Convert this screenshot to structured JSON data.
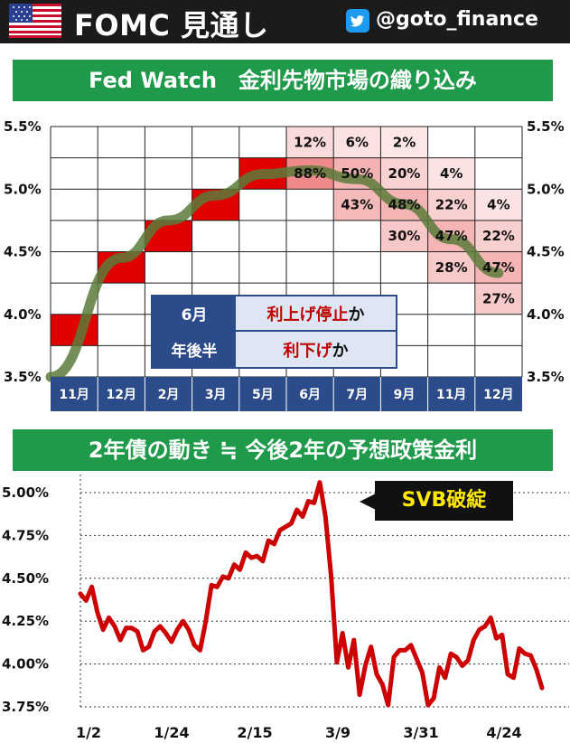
{
  "header": {
    "title": "FOMC 見通し",
    "handle": "@goto_finance",
    "flag_icon": "us-flag-icon",
    "social_icon": "twitter-icon"
  },
  "fedwatch": {
    "title": "Fed Watch　金利先物市場の織り込み",
    "legend": {
      "row1_key": "6月",
      "row1_red": "利上げ停止",
      "row1_tail": "か",
      "row2_key": "年後半",
      "row2_red": "利下げ",
      "row2_tail": "か"
    }
  },
  "bond": {
    "title": "2年債の動き ≒ 今後2年の予想政策金利",
    "annotation": "SVB破綻"
  },
  "colors": {
    "header_bg": "#1b1b1b",
    "banner": "#1e9a4a",
    "hike_red": "#e00000",
    "trend_line": "#5a7a3a",
    "bond_line": "#cc0000",
    "month_bar": "#2c4b8a"
  },
  "chart_data": [
    {
      "type": "heatmap",
      "ylim": [
        3.5,
        5.5
      ],
      "y_ticks": [
        "5.5%",
        "5.0%",
        "4.5%",
        "4.0%",
        "3.5%"
      ],
      "columns": [
        "11月",
        "12月",
        "2月",
        "3月",
        "5月",
        "6月",
        "7月",
        "9月",
        "11月",
        "12月"
      ],
      "realized_hikes": [
        {
          "col": 0,
          "rate_band": [
            3.75,
            4.0
          ]
        },
        {
          "col": 1,
          "rate_band": [
            4.25,
            4.5
          ]
        },
        {
          "col": 2,
          "rate_band": [
            4.5,
            4.75
          ]
        },
        {
          "col": 3,
          "rate_band": [
            4.75,
            5.0
          ]
        },
        {
          "col": 4,
          "rate_band": [
            5.0,
            5.25
          ]
        }
      ],
      "probabilities": [
        {
          "col": 5,
          "rate_band": [
            5.25,
            5.5
          ],
          "prob": 12,
          "label": "12%"
        },
        {
          "col": 5,
          "rate_band": [
            5.0,
            5.25
          ],
          "prob": 88,
          "label": "88%"
        },
        {
          "col": 6,
          "rate_band": [
            5.25,
            5.5
          ],
          "prob": 6,
          "label": "6%"
        },
        {
          "col": 6,
          "rate_band": [
            5.0,
            5.25
          ],
          "prob": 50,
          "label": "50%"
        },
        {
          "col": 6,
          "rate_band": [
            4.75,
            5.0
          ],
          "prob": 43,
          "label": "43%"
        },
        {
          "col": 7,
          "rate_band": [
            5.25,
            5.5
          ],
          "prob": 2,
          "label": "2%"
        },
        {
          "col": 7,
          "rate_band": [
            5.0,
            5.25
          ],
          "prob": 20,
          "label": "20%"
        },
        {
          "col": 7,
          "rate_band": [
            4.75,
            5.0
          ],
          "prob": 48,
          "label": "48%"
        },
        {
          "col": 7,
          "rate_band": [
            4.5,
            4.75
          ],
          "prob": 30,
          "label": "30%"
        },
        {
          "col": 8,
          "rate_band": [
            5.0,
            5.25
          ],
          "prob": 4,
          "label": "4%"
        },
        {
          "col": 8,
          "rate_band": [
            4.75,
            5.0
          ],
          "prob": 22,
          "label": "22%"
        },
        {
          "col": 8,
          "rate_band": [
            4.5,
            4.75
          ],
          "prob": 47,
          "label": "47%"
        },
        {
          "col": 8,
          "rate_band": [
            4.25,
            4.5
          ],
          "prob": 28,
          "label": "28%"
        },
        {
          "col": 9,
          "rate_band": [
            4.75,
            5.0
          ],
          "prob": 4,
          "label": "4%"
        },
        {
          "col": 9,
          "rate_band": [
            4.5,
            4.75
          ],
          "prob": 22,
          "label": "22%"
        },
        {
          "col": 9,
          "rate_band": [
            4.25,
            4.5
          ],
          "prob": 47,
          "label": "47%"
        },
        {
          "col": 9,
          "rate_band": [
            4.0,
            4.25
          ],
          "prob": 27,
          "label": "27%"
        }
      ],
      "trend_curve": [
        [
          0,
          3.5
        ],
        [
          1,
          4.45
        ],
        [
          2,
          4.75
        ],
        [
          3,
          4.95
        ],
        [
          4,
          5.12
        ],
        [
          5,
          5.15
        ],
        [
          6,
          5.08
        ],
        [
          7,
          4.88
        ],
        [
          8,
          4.6
        ],
        [
          9,
          4.33
        ]
      ]
    },
    {
      "type": "line",
      "ylim": [
        3.75,
        5.0
      ],
      "y_ticks": [
        "5.00%",
        "4.75%",
        "4.50%",
        "4.25%",
        "4.00%",
        "3.75%"
      ],
      "x_ticks": [
        "1/2",
        "1/24",
        "2/15",
        "3/9",
        "3/31",
        "4/24"
      ],
      "series": [
        {
          "values": [
            4.41,
            4.37,
            4.45,
            4.3,
            4.2,
            4.27,
            4.22,
            4.14,
            4.21,
            4.21,
            4.19,
            4.08,
            4.1,
            4.19,
            4.22,
            4.18,
            4.13,
            4.2,
            4.25,
            4.2,
            4.11,
            4.08,
            4.25,
            4.46,
            4.45,
            4.51,
            4.5,
            4.58,
            4.55,
            4.65,
            4.62,
            4.63,
            4.6,
            4.72,
            4.7,
            4.78,
            4.8,
            4.82,
            4.9,
            4.86,
            4.95,
            4.94,
            5.06,
            4.86,
            4.51,
            4.01,
            4.18,
            3.98,
            4.14,
            3.82,
            3.99,
            4.1,
            3.94,
            3.88,
            3.76,
            4.04,
            4.08,
            4.08,
            4.11,
            4.03,
            3.95,
            3.76,
            3.8,
            3.98,
            3.92,
            4.06,
            4.04,
            3.99,
            4.02,
            4.14,
            4.2,
            4.22,
            4.27,
            4.15,
            4.17,
            3.94,
            3.92,
            4.09,
            4.06,
            4.05,
            3.97,
            3.86
          ]
        }
      ]
    }
  ]
}
